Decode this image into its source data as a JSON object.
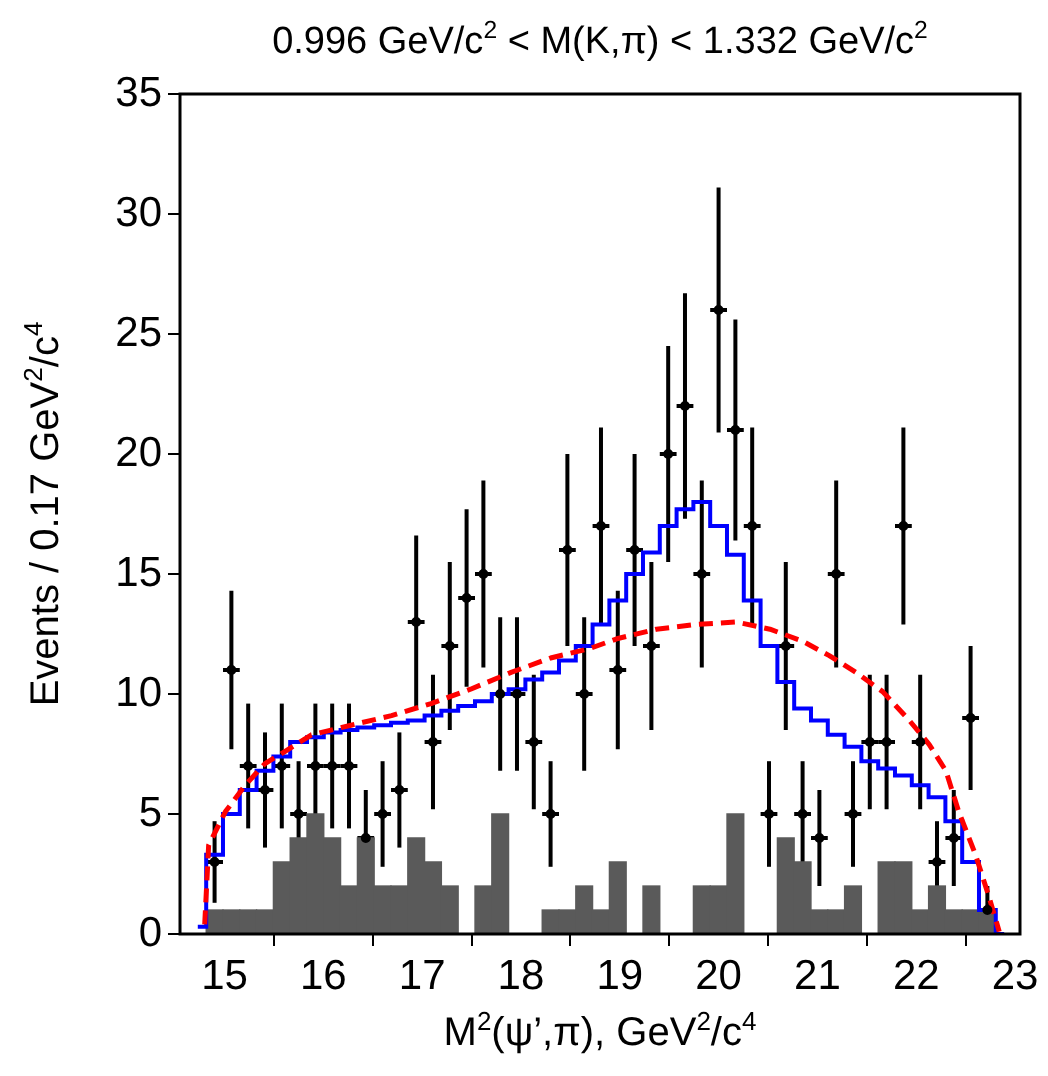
{
  "chart_data": {
    "type": "scatter",
    "title": "0.996 GeV/c$^{2}$ < M(K,π) < 1.332 GeV/c$^{2}$",
    "xlabel": "M$^{2}$(ψ’,π), GeV$^{2}$/c$^{4}$",
    "ylabel": "Events / 0.17 GeV$^{2}$/c$^{4}$",
    "xlim": [
      14.55,
      23.05
    ],
    "xticks": [
      15,
      16,
      17,
      18,
      19,
      20,
      21,
      22,
      23
    ],
    "ylim": [
      0,
      35
    ],
    "yticks": [
      0,
      5,
      10,
      15,
      20,
      25,
      30,
      35
    ],
    "grid": false,
    "legend": false,
    "series": [
      {
        "type": "bar",
        "color": "#5a5a5a",
        "x": [
          14.9,
          15.07,
          15.24,
          15.41,
          15.58,
          15.75,
          15.92,
          16.09,
          16.26,
          16.43,
          16.6,
          16.77,
          16.94,
          17.11,
          17.28,
          17.45,
          17.62,
          17.79,
          17.96,
          18.13,
          18.3,
          18.47,
          18.64,
          18.81,
          18.98,
          19.15,
          19.32,
          19.49,
          19.66,
          19.83,
          20.0,
          20.17,
          20.34,
          20.51,
          20.68,
          20.85,
          21.02,
          21.19,
          21.36,
          21.53,
          21.7,
          21.87,
          22.04,
          22.21,
          22.38,
          22.55,
          22.72
        ],
        "values": [
          1,
          1,
          1,
          1,
          3,
          4,
          5,
          4,
          2,
          4,
          2,
          2,
          4,
          3,
          2,
          0,
          2,
          5,
          0,
          0,
          1,
          1,
          2,
          1,
          3,
          0,
          2,
          0,
          0,
          2,
          2,
          5,
          0,
          0,
          4,
          3,
          1,
          1,
          2,
          0,
          3,
          3,
          1,
          2,
          1,
          1,
          1
        ]
      },
      {
        "type": "step",
        "color": "#0000ff",
        "x": [
          14.73,
          14.9,
          15.07,
          15.24,
          15.41,
          15.58,
          15.75,
          15.92,
          16.09,
          16.26,
          16.43,
          16.6,
          16.77,
          16.94,
          17.11,
          17.28,
          17.45,
          17.62,
          17.79,
          17.96,
          18.13,
          18.3,
          18.47,
          18.64,
          18.81,
          18.98,
          19.15,
          19.32,
          19.49,
          19.66,
          19.83,
          20.0,
          20.17,
          20.34,
          20.51,
          20.68,
          20.85,
          21.02,
          21.19,
          21.36,
          21.53,
          21.7,
          21.87,
          22.04,
          22.21,
          22.38,
          22.55,
          22.72,
          22.89
        ],
        "values": [
          0.3,
          3.3,
          5.0,
          6.0,
          6.8,
          7.4,
          8.0,
          8.2,
          8.4,
          8.5,
          8.6,
          8.7,
          8.8,
          8.9,
          9.1,
          9.3,
          9.5,
          9.7,
          10.0,
          10.2,
          10.6,
          10.9,
          11.4,
          12.0,
          12.9,
          13.9,
          15.0,
          15.9,
          17.0,
          17.7,
          18.0,
          17.0,
          15.8,
          13.9,
          12.0,
          10.5,
          9.4,
          8.9,
          8.3,
          7.8,
          7.2,
          6.9,
          6.6,
          6.2,
          5.7,
          4.7,
          3.0,
          1.0,
          0
        ]
      },
      {
        "type": "line",
        "color": "#ff0000",
        "line_style": "dashed",
        "x": [
          14.8,
          14.84,
          15.01,
          15.21,
          15.41,
          15.61,
          15.88,
          16.28,
          16.69,
          17.09,
          17.49,
          17.9,
          18.3,
          18.7,
          18.97,
          19.37,
          19.78,
          20.18,
          20.52,
          20.85,
          21.12,
          21.39,
          21.66,
          21.93,
          22.13,
          22.3,
          22.43,
          22.6,
          22.74,
          22.84
        ],
        "values": [
          0.4,
          3.7,
          5.1,
          6.2,
          7.1,
          7.6,
          8.3,
          8.7,
          9.1,
          9.6,
          10.2,
          10.9,
          11.5,
          11.9,
          12.3,
          12.7,
          12.9,
          13.0,
          12.7,
          12.2,
          11.6,
          10.9,
          10.1,
          8.9,
          7.9,
          6.8,
          5.1,
          3.3,
          1.5,
          0.1
        ]
      },
      {
        "color": "#000000",
        "x": [
          14.9,
          15.07,
          15.24,
          15.41,
          15.58,
          15.75,
          15.92,
          16.09,
          16.26,
          16.43,
          16.6,
          16.77,
          16.94,
          17.11,
          17.28,
          17.45,
          17.62,
          17.79,
          17.96,
          18.13,
          18.3,
          18.47,
          18.64,
          18.81,
          18.98,
          19.15,
          19.32,
          19.49,
          19.66,
          19.83,
          20.0,
          20.17,
          20.34,
          20.51,
          20.68,
          20.85,
          21.02,
          21.19,
          21.36,
          21.53,
          21.7,
          21.87,
          22.04,
          22.21,
          22.38,
          22.55,
          22.72
        ],
        "values": [
          3,
          11,
          7,
          6,
          7,
          5,
          7,
          7,
          7,
          4,
          5,
          6,
          13,
          8,
          12,
          14,
          15,
          10,
          10,
          8,
          5,
          16,
          10,
          17,
          11,
          16,
          12,
          20,
          22,
          15,
          26,
          21,
          17,
          5,
          12,
          5,
          4,
          15,
          5,
          8,
          8,
          17,
          8,
          3,
          4,
          9,
          1
        ],
        "errors": [
          1.7,
          3.3,
          2.6,
          2.4,
          2.6,
          2.2,
          2.6,
          2.6,
          2.6,
          2,
          2.2,
          2.4,
          3.6,
          2.8,
          3.5,
          3.7,
          3.9,
          3.2,
          3.2,
          2.8,
          2.2,
          4,
          3.2,
          4.1,
          3.3,
          4,
          3.5,
          4.5,
          4.7,
          3.9,
          5.1,
          4.6,
          4.1,
          2.2,
          3.5,
          2.2,
          2,
          3.9,
          2.2,
          2.8,
          2.8,
          4.1,
          2.8,
          1.7,
          2,
          3,
          1
        ],
        "xerrors": [
          0.085,
          0.085,
          0.085,
          0.085,
          0.085,
          0.085,
          0.085,
          0.085,
          0.085,
          0.085,
          0.085,
          0.085,
          0.085,
          0.085,
          0.085,
          0.085,
          0.085,
          0.085,
          0.085,
          0.085,
          0.085,
          0.085,
          0.085,
          0.085,
          0.085,
          0.085,
          0.085,
          0.085,
          0.085,
          0.085,
          0.085,
          0.085,
          0.085,
          0.085,
          0.085,
          0.085,
          0.085,
          0.085,
          0.085,
          0.085,
          0.085,
          0.085,
          0.085,
          0.085,
          0.085,
          0.085,
          0.085
        ]
      }
    ]
  }
}
